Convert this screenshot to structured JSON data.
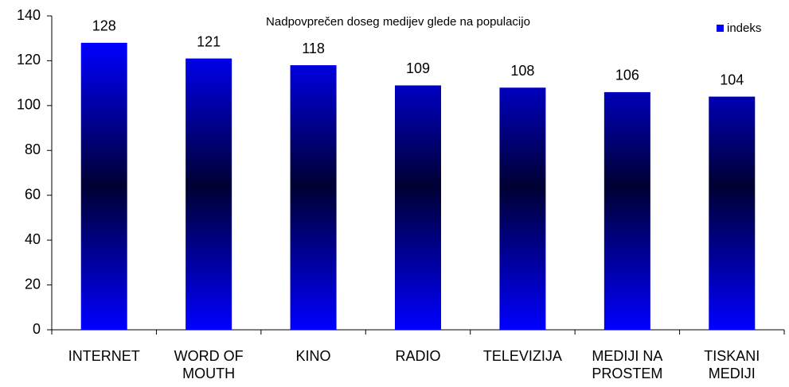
{
  "chart_data": {
    "type": "bar",
    "title": "Nadpovprečen doseg medijev glede na populacijo",
    "categories": [
      "INTERNET",
      "WORD OF MOUTH",
      "KINO",
      "RADIO",
      "TELEVIZIJA",
      "MEDIJI NA PROSTEM",
      "TISKANI MEDIJI"
    ],
    "series": [
      {
        "name": "indeks",
        "color": "#0000ff",
        "values": [
          128,
          121,
          118,
          109,
          108,
          106,
          104
        ]
      }
    ],
    "ylim": [
      0,
      140
    ],
    "yticks": [
      0,
      20,
      40,
      60,
      80,
      100,
      120,
      140
    ],
    "grid": false,
    "legend": "top-right"
  }
}
